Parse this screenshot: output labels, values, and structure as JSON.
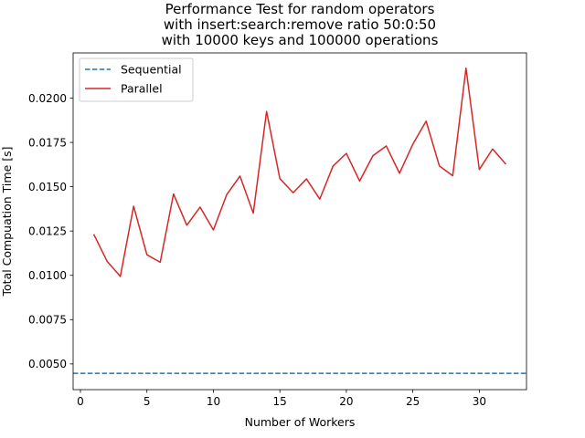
{
  "chart_data": {
    "type": "line",
    "title_lines": [
      "Performance Test for random operators",
      "with insert:search:remove ratio 50:0:50",
      "with 10000 keys and 100000 operations"
    ],
    "xlabel": "Number of Workers",
    "ylabel": "Total Compuation Time [s]",
    "xlim": [
      -0.55,
      33.55
    ],
    "ylim": [
      0.00355,
      0.02255
    ],
    "x_ticks": [
      0,
      5,
      10,
      15,
      20,
      25,
      30
    ],
    "y_ticks": [
      0.005,
      0.0075,
      0.01,
      0.0125,
      0.015,
      0.0175,
      0.02
    ],
    "y_tick_labels": [
      "0.0050",
      "0.0075",
      "0.0100",
      "0.0125",
      "0.0150",
      "0.0175",
      "0.0200"
    ],
    "grid": false,
    "legend_position": "top-left",
    "series": [
      {
        "name": "Sequential",
        "style": "dashed",
        "color": "#1f77b4",
        "kind": "hline",
        "y": 0.00447
      },
      {
        "name": "Parallel",
        "style": "solid",
        "color": "#d62728",
        "x": [
          1,
          2,
          3,
          4,
          5,
          6,
          7,
          8,
          9,
          10,
          11,
          12,
          13,
          14,
          15,
          16,
          17,
          18,
          19,
          20,
          21,
          22,
          23,
          24,
          25,
          26,
          27,
          28,
          29,
          30,
          31,
          32
        ],
        "y": [
          0.01232,
          0.0108,
          0.00994,
          0.0139,
          0.01116,
          0.01074,
          0.01459,
          0.01283,
          0.01385,
          0.01256,
          0.01455,
          0.0156,
          0.01351,
          0.01925,
          0.01546,
          0.01466,
          0.01544,
          0.0143,
          0.01617,
          0.01688,
          0.01532,
          0.01675,
          0.0173,
          0.01576,
          0.0174,
          0.0187,
          0.01617,
          0.01562,
          0.02169,
          0.01597,
          0.01713,
          0.01627
        ]
      }
    ]
  }
}
